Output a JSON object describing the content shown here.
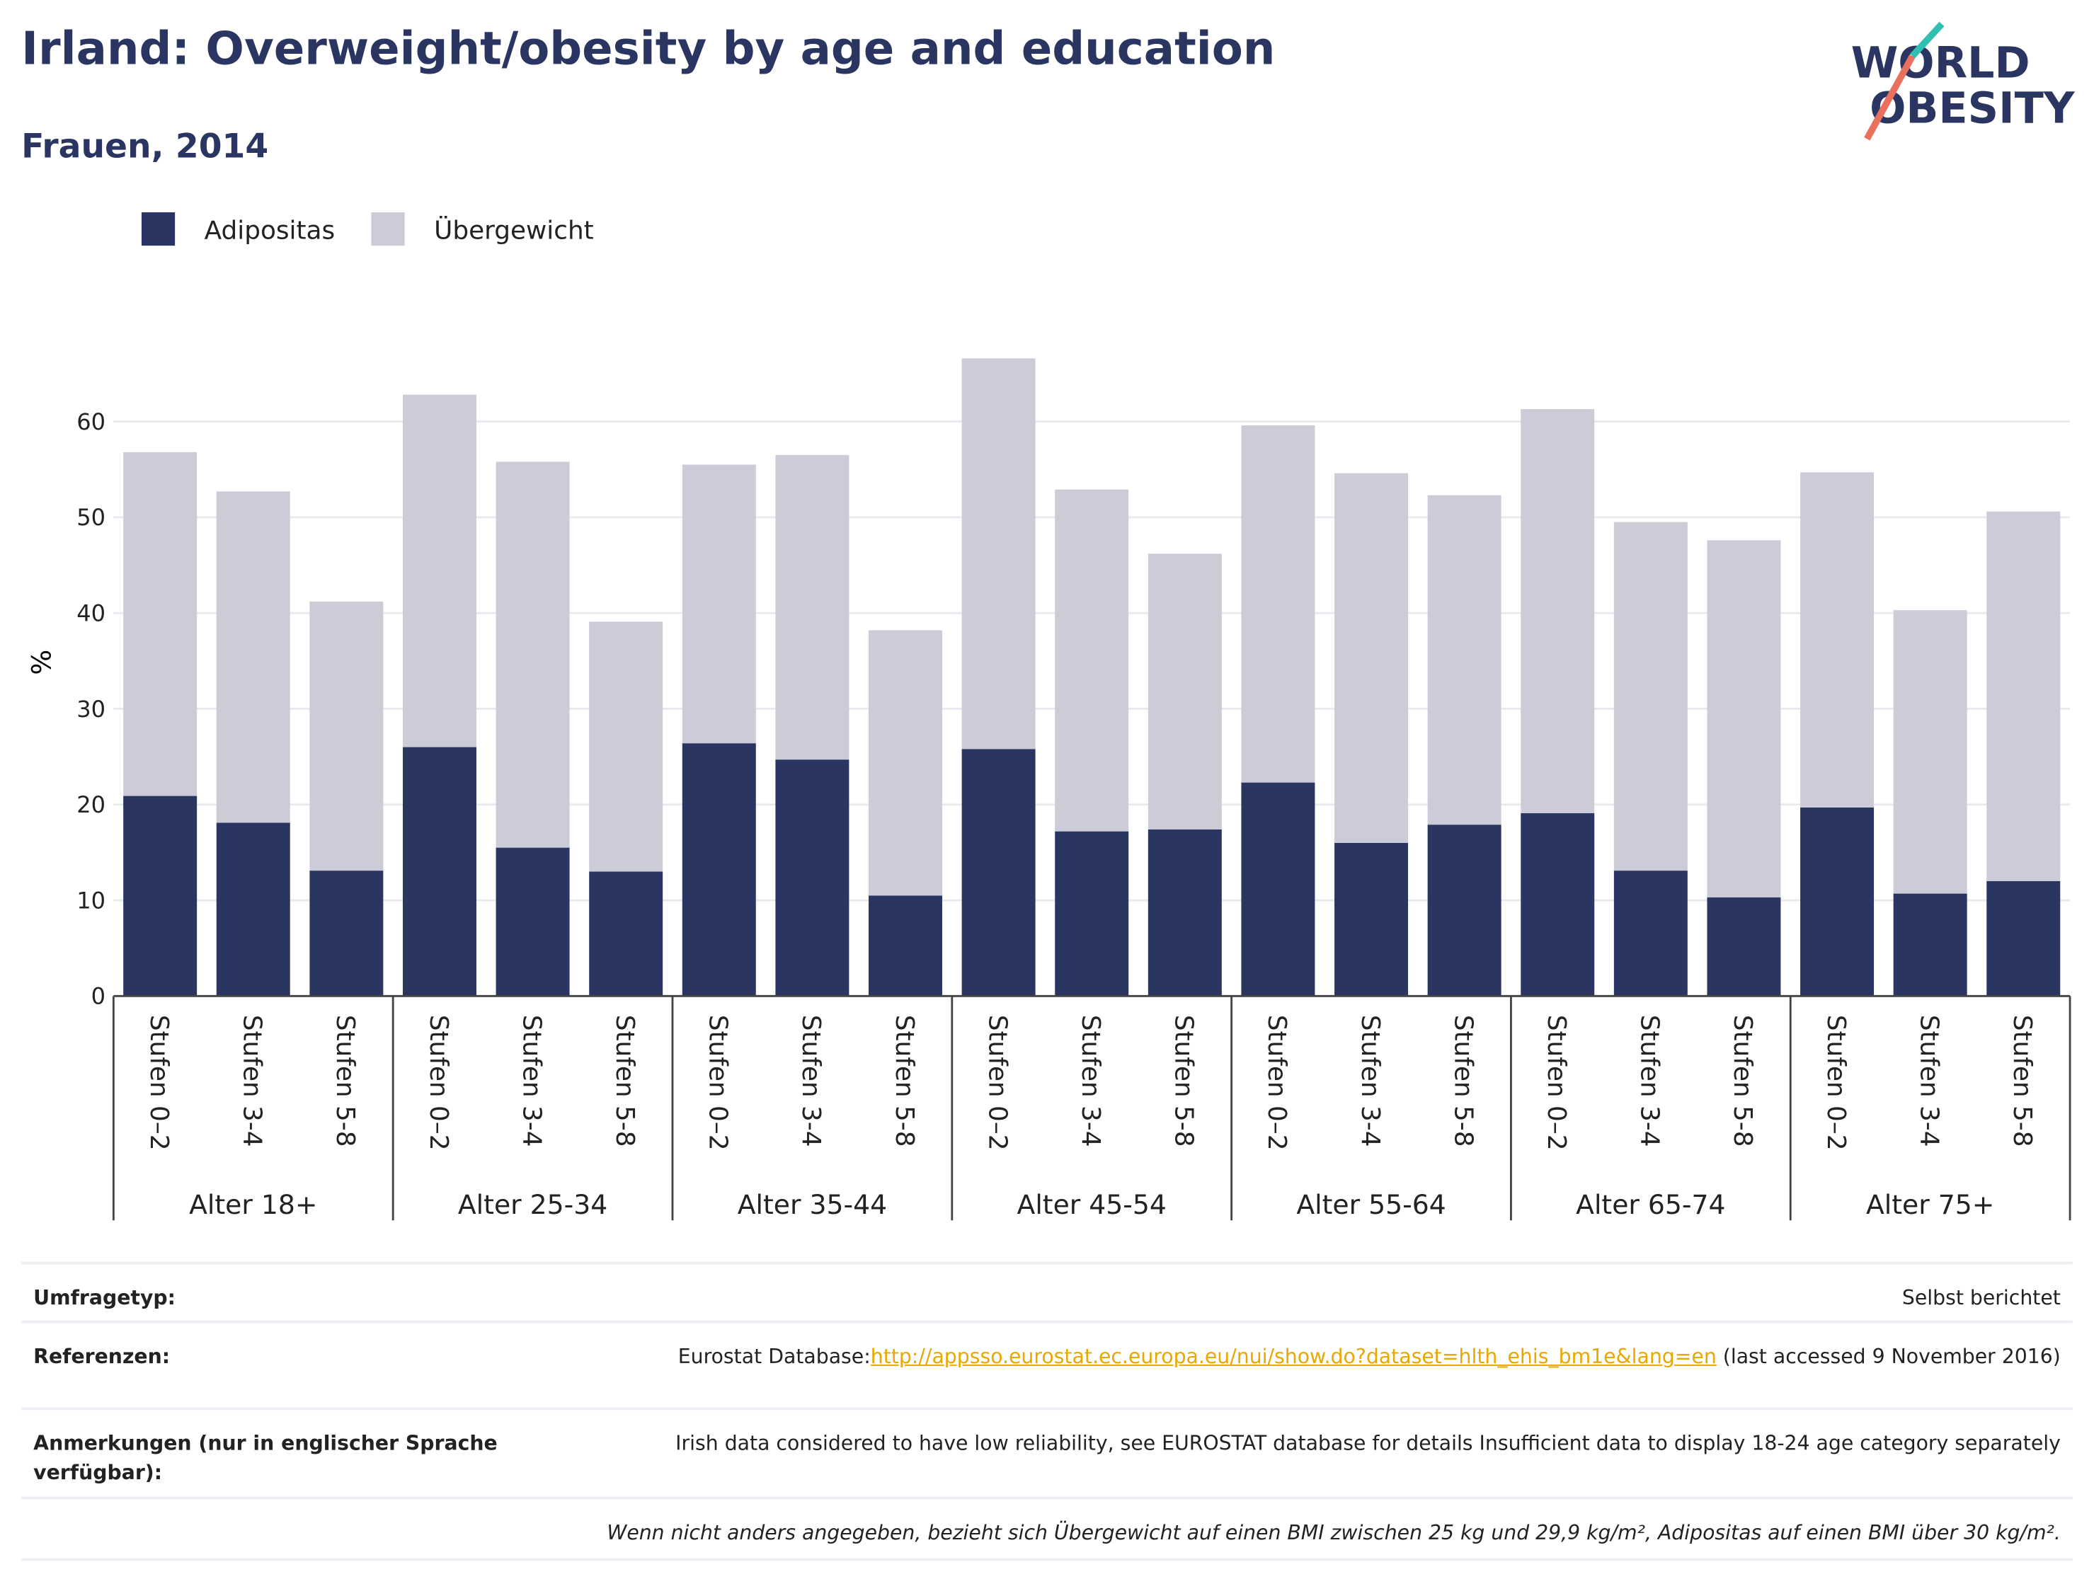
{
  "title": "Irland: Overweight/obesity by age and education",
  "subtitle": "Frauen, 2014",
  "logo": [
    "WORLD",
    "OBESITY"
  ],
  "chart_data": {
    "type": "stacked-bar",
    "y_label": "%",
    "groups": [
      "Alter 18+",
      "Alter 25-34",
      "Alter 35-44",
      "Alter 45-54",
      "Alter 55-64",
      "Alter 65-74",
      "Alter 75+"
    ],
    "categories": [
      "Stufen 0–2",
      "Stufen 3-4",
      "Stufen 5-8",
      "Stufen 0–2",
      "Stufen 3-4",
      "Stufen 5-8",
      "Stufen 0–2",
      "Stufen 3-4",
      "Stufen 5-8",
      "Stufen 0–2",
      "Stufen 3-4",
      "Stufen 5-8",
      "Stufen 0–2",
      "Stufen 3-4",
      "Stufen 5-8",
      "Stufen 0–2",
      "Stufen 3-4",
      "Stufen 5-8",
      "Stufen 0–2",
      "Stufen 3-4",
      "Stufen 5-8"
    ],
    "series": [
      {
        "name": "Adipositas",
        "color": "#2a3661",
        "values": [
          20.9,
          18.1,
          13.1,
          26.0,
          15.5,
          13.0,
          26.4,
          24.7,
          10.5,
          25.8,
          17.2,
          17.4,
          22.3,
          16.0,
          17.9,
          19.1,
          13.1,
          10.3,
          19.7,
          10.7,
          12.0
        ]
      },
      {
        "name": "Übergewicht",
        "color": "#cbccd8",
        "values": [
          35.9,
          34.6,
          28.1,
          36.8,
          40.3,
          26.1,
          29.1,
          31.8,
          27.7,
          40.8,
          35.7,
          28.8,
          37.3,
          38.6,
          34.4,
          42.2,
          36.4,
          37.3,
          35.0,
          29.6,
          38.6
        ]
      }
    ],
    "ylim": [
      0,
      70
    ],
    "yticks": [
      0,
      10,
      20,
      30,
      40,
      50,
      60
    ],
    "grid": true,
    "legend": "top-left"
  },
  "footer": {
    "rows": [
      {
        "label": "Umfragetyp:",
        "value": "Selbst berichtet"
      },
      {
        "label": "Referenzen:",
        "prefix": "Eurostat Database:",
        "url": "http://appsso.eurostat.ec.europa.eu/nui/show.do?dataset=hlth_ehis_bm1e&lang=en",
        "suffix": " (last accessed 9 November 2016)"
      },
      {
        "label": "Anmerkungen (nur in englischer Sprache verfügbar):",
        "value": "Irish data considered to have low reliability, see EUROSTAT database for details Insufficient data to display 18-24 age category separately"
      }
    ],
    "note": "Wenn nicht anders angegeben, bezieht sich Übergewicht auf einen BMI zwischen 25 kg und 29,9 kg/m², Adipositas auf einen BMI über 30 kg/m²."
  }
}
